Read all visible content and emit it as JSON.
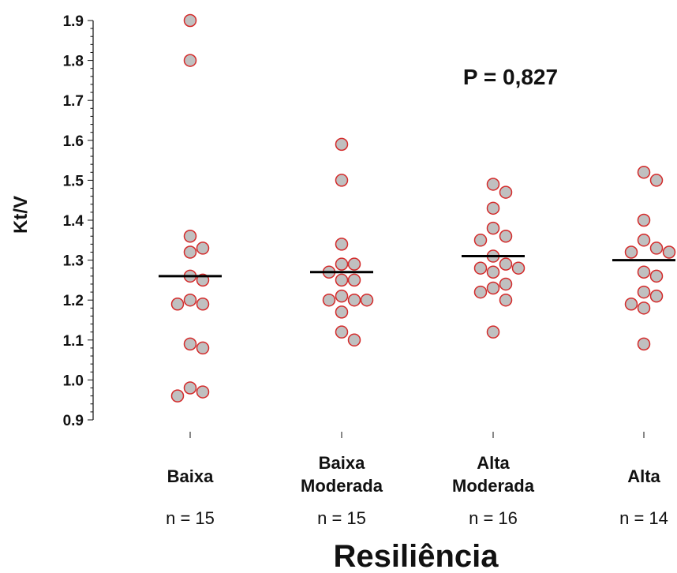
{
  "chart_data": {
    "type": "scatter",
    "ylabel": "Kt/V",
    "xlabel": "Resiliência",
    "annotation": "P = 0,827",
    "ylim": [
      0.9,
      1.9
    ],
    "yticks": [
      "0.9",
      "1.0",
      "1.1",
      "1.2",
      "1.3",
      "1.4",
      "1.5",
      "1.6",
      "1.7",
      "1.8",
      "1.9"
    ],
    "grid": false,
    "legend": "none",
    "colors": {
      "marker_fill": "#c0c0c0",
      "marker_edge": "#d42a2a",
      "mean_line": "#000000"
    },
    "groups": [
      {
        "label_lines": [
          "Baixa"
        ],
        "n_label": "n = 15",
        "mean": 1.26,
        "values": [
          1.9,
          1.8,
          1.36,
          1.33,
          1.32,
          1.26,
          1.25,
          1.2,
          1.19,
          1.19,
          1.09,
          1.08,
          0.98,
          0.97,
          0.96
        ]
      },
      {
        "label_lines": [
          "Baixa",
          "Moderada"
        ],
        "n_label": "n = 15",
        "mean": 1.27,
        "values": [
          1.59,
          1.5,
          1.34,
          1.29,
          1.29,
          1.27,
          1.25,
          1.25,
          1.21,
          1.2,
          1.2,
          1.2,
          1.17,
          1.12,
          1.1
        ]
      },
      {
        "label_lines": [
          "Alta",
          "Moderada"
        ],
        "n_label": "n = 16",
        "mean": 1.31,
        "values": [
          1.49,
          1.47,
          1.43,
          1.38,
          1.36,
          1.35,
          1.31,
          1.29,
          1.28,
          1.28,
          1.27,
          1.24,
          1.23,
          1.22,
          1.2,
          1.12
        ]
      },
      {
        "label_lines": [
          "Alta"
        ],
        "n_label": "n = 14",
        "mean": 1.3,
        "values": [
          1.52,
          1.5,
          1.4,
          1.35,
          1.33,
          1.32,
          1.32,
          1.27,
          1.26,
          1.22,
          1.21,
          1.19,
          1.18,
          1.09
        ]
      }
    ]
  }
}
